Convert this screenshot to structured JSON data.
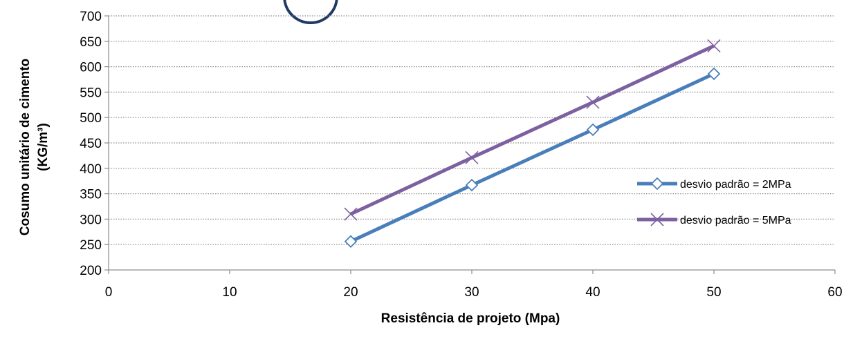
{
  "chart_data": {
    "type": "line",
    "xlabel": "Resistência de projeto (Mpa)",
    "ylabel_line1": "Cosumo unitário de cimento",
    "ylabel_line2": "(KG/m³)",
    "xlim": [
      0,
      60
    ],
    "ylim": [
      200,
      700
    ],
    "xticks": [
      "0",
      "10",
      "20",
      "30",
      "40",
      "50",
      "60"
    ],
    "yticks": [
      "200",
      "250",
      "300",
      "350",
      "400",
      "450",
      "500",
      "550",
      "600",
      "650",
      "700"
    ],
    "grid": "horizontal-dotted",
    "legend_position": "right",
    "x": [
      20,
      30,
      40,
      50
    ],
    "series": [
      {
        "name": "desvio padrão = 2MPa",
        "values": [
          256,
          367,
          476,
          586
        ],
        "color": "#4a7ebb",
        "marker": "diamond"
      },
      {
        "name": "desvio padrão = 5MPa",
        "values": [
          310,
          421,
          530,
          641
        ],
        "color": "#7d60a0",
        "marker": "x"
      }
    ]
  }
}
